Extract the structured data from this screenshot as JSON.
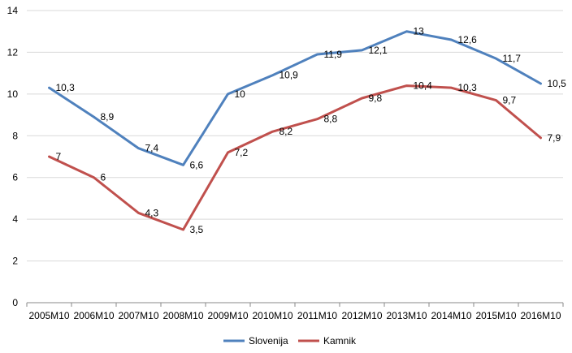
{
  "chart_data": {
    "type": "line",
    "categories": [
      "2005M10",
      "2006M10",
      "2007M10",
      "2008M10",
      "2009M10",
      "2010M10",
      "2011M10",
      "2012M10",
      "2013M10",
      "2014M10",
      "2015M10",
      "2016M10"
    ],
    "series": [
      {
        "name": "Slovenija",
        "color": "#4f81bd",
        "values": [
          10.3,
          8.9,
          7.4,
          6.6,
          10,
          10.9,
          11.9,
          12.1,
          13,
          12.6,
          11.7,
          10.5
        ],
        "labels": [
          "10,3",
          "8,9",
          "7,4",
          "6,6",
          "10",
          "10,9",
          "11,9",
          "12,1",
          "13",
          "12,6",
          "11,7",
          "10,5"
        ]
      },
      {
        "name": "Kamnik",
        "color": "#c0504d",
        "values": [
          7,
          6,
          4.3,
          3.5,
          7.2,
          8.2,
          8.8,
          9.8,
          10.4,
          10.3,
          9.7,
          7.9
        ],
        "labels": [
          "7",
          "6",
          "4,3",
          "3,5",
          "7,2",
          "8,2",
          "8,8",
          "9,8",
          "10,4",
          "10,3",
          "9,7",
          "7,9"
        ]
      }
    ],
    "y_ticks": [
      "0",
      "2",
      "4",
      "6",
      "8",
      "10",
      "12",
      "14"
    ],
    "ylim": [
      0,
      14
    ],
    "grid": true,
    "legend_position": "bottom"
  }
}
